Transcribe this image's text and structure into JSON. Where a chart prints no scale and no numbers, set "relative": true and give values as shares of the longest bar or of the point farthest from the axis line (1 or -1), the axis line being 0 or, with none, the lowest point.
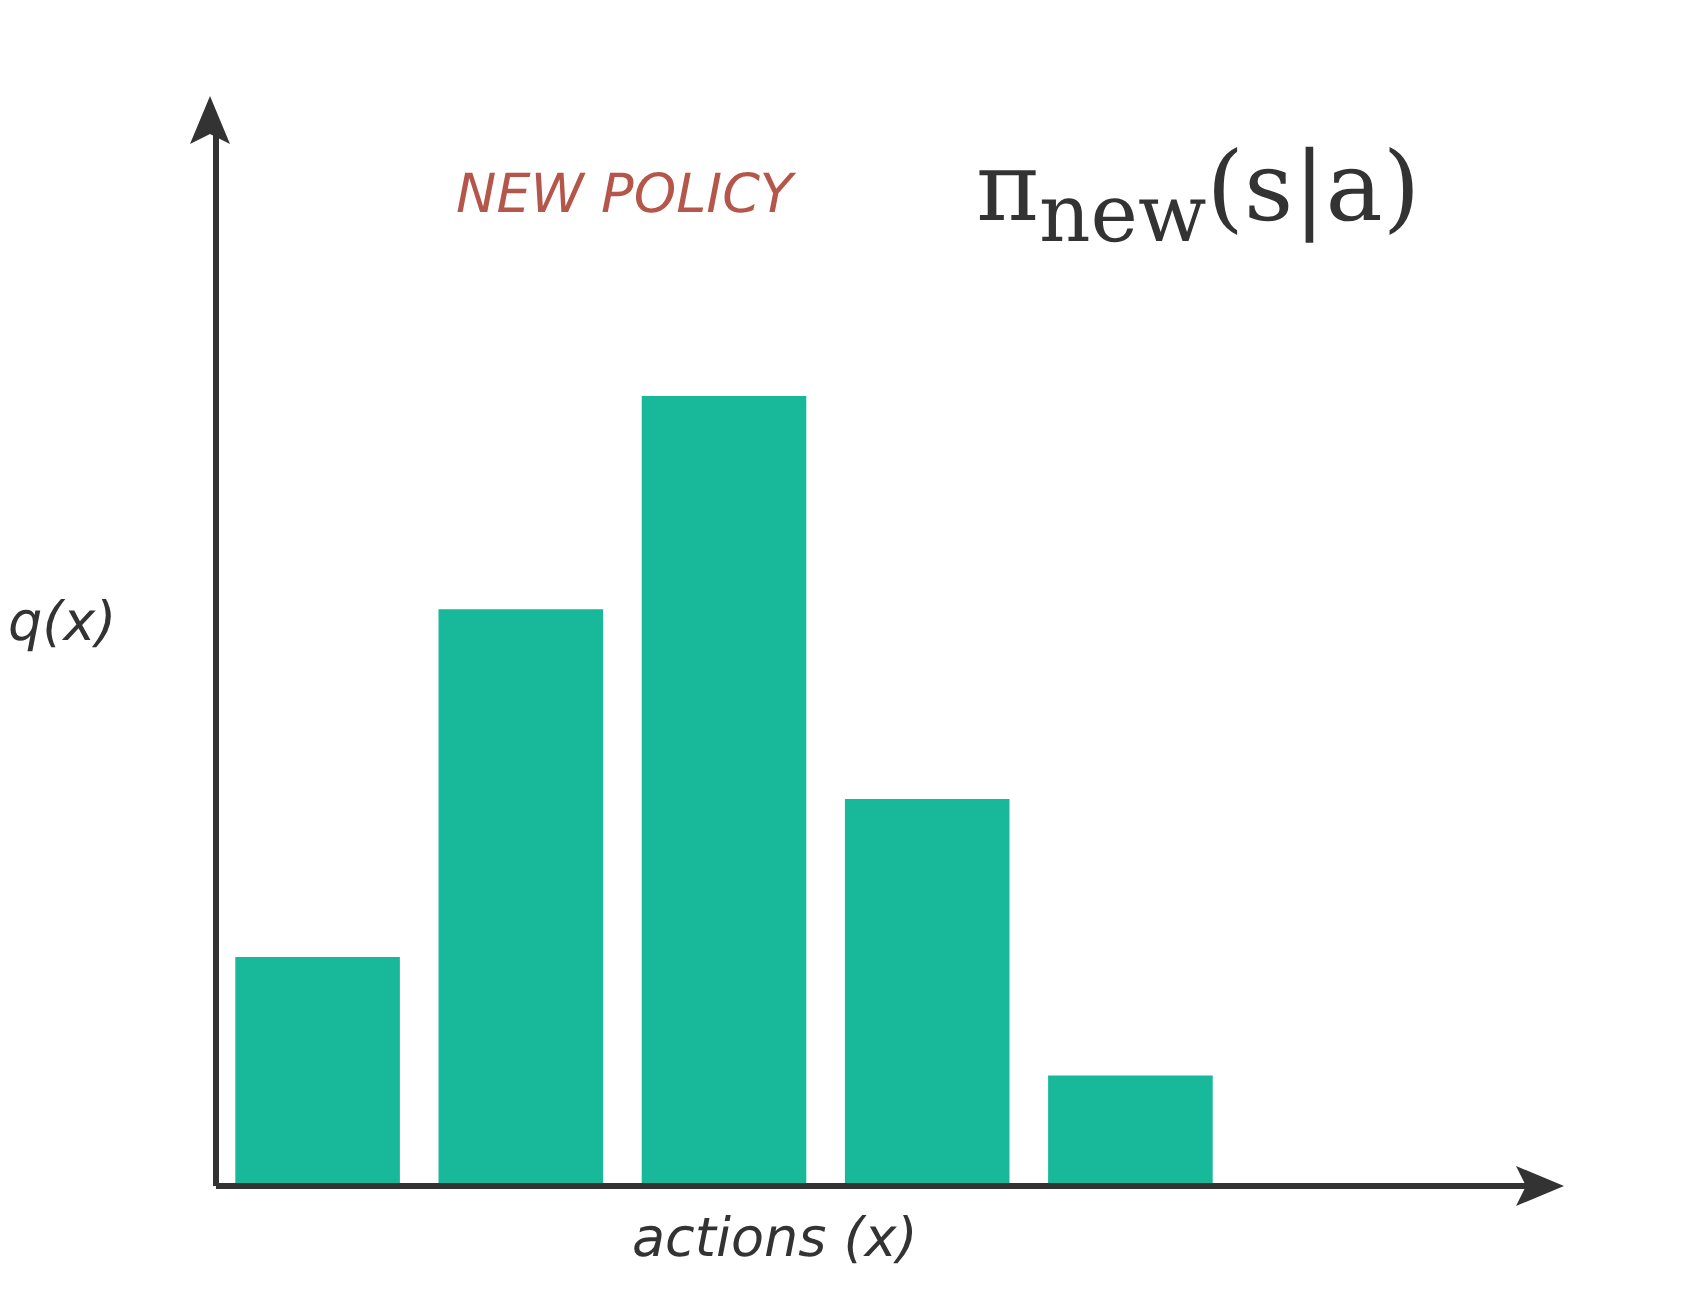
{
  "chart_data": {
    "type": "bar",
    "relative": true,
    "title": "NEW POLICY",
    "subtitle": "π$_{new}$(s|a)",
    "xlabel": "actions (x)",
    "ylabel": "q(x)",
    "categories": [
      null,
      null,
      null,
      null,
      null
    ],
    "values": [
      0.29,
      0.73,
      1,
      0.49,
      0.14
    ],
    "color": "#17b99a",
    "grid": false,
    "legend": false
  }
}
